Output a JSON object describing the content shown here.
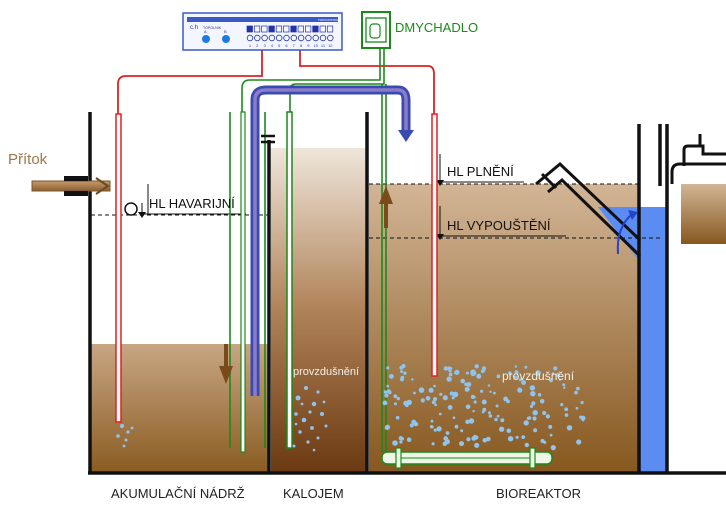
{
  "controller": {
    "brand": "TOPOLNIK",
    "model": "TOPCONTROL",
    "buttons": [
      "A",
      "B"
    ],
    "channels": [
      "1",
      "2",
      "3",
      "4",
      "5",
      "6",
      "7",
      "8",
      "9",
      "10",
      "11",
      "12"
    ]
  },
  "labels": {
    "blower": "DMYCHADLO",
    "inflow": "Přítok",
    "emergency_level": "HL HAVARIJNÍ",
    "fill_level": "HL PLNĚNÍ",
    "discharge_level": "HL VYPOUŠTĚNÍ",
    "aeration_left": "provzdušnění",
    "aeration_right": "provzdušnění"
  },
  "tanks": {
    "accumulation": "AKUMULAČNÍ NÁDRŽ",
    "sludge": "KALOJEM",
    "bioreactor": "BIOREAKTOR"
  },
  "colors": {
    "wall": "#111111",
    "sludge_liquid": "#b08c64",
    "pipe_red": "#e02020",
    "pipe_green": "#1a8a1a",
    "pipe_blue": "#3a4ab0",
    "clean_water": "#5b8cf2",
    "inflow_pipe": "#a0764a",
    "bubbles": "#8ec4ef"
  }
}
